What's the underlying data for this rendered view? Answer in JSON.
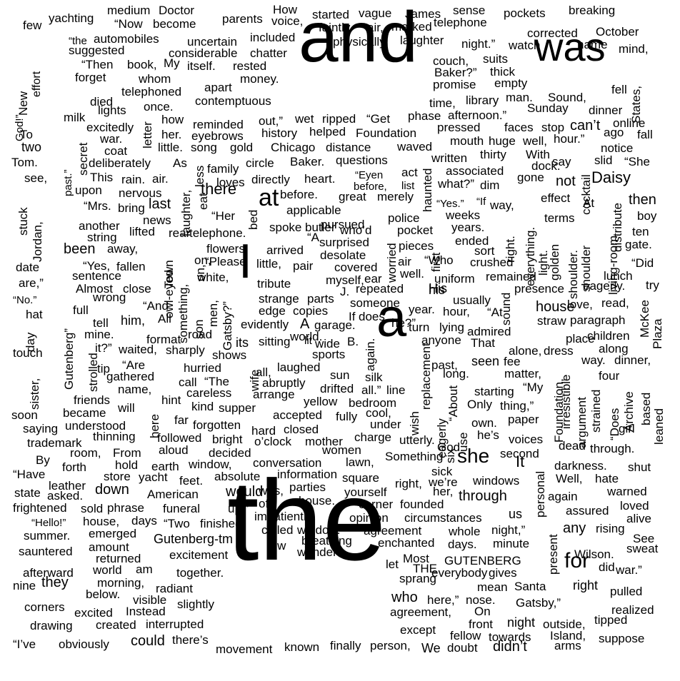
{
  "words": [
    [
      "the",
      0
    ],
    [
      "and",
      0
    ],
    [
      "was",
      0
    ],
    [
      "a",
      0
    ],
    [
      "I",
      0
    ],
    [
      "at",
      0
    ],
    [
      "she",
      0
    ],
    [
      "for",
      0
    ],
    [
      "Daisy",
      0
    ],
    [
      "there",
      0
    ],
    [
      "then",
      0
    ],
    [
      "It",
      0
    ],
    [
      "down",
      0
    ],
    [
      "they",
      0
    ],
    [
      "who",
      0
    ],
    [
      "didn’t",
      0
    ],
    [
      "could",
      0
    ],
    [
      "not",
      0
    ],
    [
      "been",
      0
    ],
    [
      "would",
      0
    ],
    [
      "through",
      0
    ],
    [
      "house",
      0
    ],
    [
      "any",
      0
    ],
    [
      "Gutenberg-tm",
      0
    ],
    [
      "his",
      0
    ],
    [
      "right",
      0
    ],
    [
      "its",
      0
    ],
    [
      "him,",
      0
    ],
    [
      "us",
      0
    ],
    [
      "few",
      0
    ],
    [
      "yachting",
      0
    ],
    [
      "medium",
      0
    ],
    [
      "Doctor",
      0
    ],
    [
      "How",
      0
    ],
    [
      "started",
      0
    ],
    [
      "vague",
      0
    ],
    [
      "James",
      0
    ],
    [
      "sense",
      0
    ],
    [
      "pockets",
      0
    ],
    [
      "breaking",
      0
    ],
    [
      "“Now",
      0
    ],
    [
      "become",
      0
    ],
    [
      "parents",
      0
    ],
    [
      "voice,",
      0
    ],
    [
      "faintly",
      0
    ],
    [
      "air,",
      0
    ],
    [
      "marked",
      0
    ],
    [
      "telephone",
      0
    ],
    [
      "corrected",
      0
    ],
    [
      "October",
      0
    ],
    [
      "“the",
      0
    ],
    [
      "automobiles",
      0
    ],
    [
      "uncertain",
      0
    ],
    [
      "included",
      0
    ],
    [
      "on,",
      0
    ],
    [
      "physically",
      0
    ],
    [
      "laughter",
      0
    ],
    [
      "night.”",
      0
    ],
    [
      "watch",
      0
    ],
    [
      "name",
      0
    ],
    [
      "mind,",
      0
    ],
    [
      "suggested",
      0
    ],
    [
      "considerable",
      0
    ],
    [
      "chatter",
      0
    ],
    [
      "“Then",
      0
    ],
    [
      "book,",
      0
    ],
    [
      "My",
      0
    ],
    [
      "itself.",
      0
    ],
    [
      "rested",
      0
    ],
    [
      "couch,",
      0
    ],
    [
      "suits",
      0
    ],
    [
      "forget",
      0
    ],
    [
      "whom",
      0
    ],
    [
      "money.",
      0
    ],
    [
      "Baker?”",
      0
    ],
    [
      "thick",
      0
    ],
    [
      "apart",
      0
    ],
    [
      "promise",
      0
    ],
    [
      "empty",
      0
    ],
    [
      "fell",
      0
    ],
    [
      "telephoned",
      0
    ],
    [
      "died",
      0
    ],
    [
      "contemptuous",
      0
    ],
    [
      "library",
      0
    ],
    [
      "man.",
      0
    ],
    [
      "Sound,",
      0
    ],
    [
      "time,",
      0
    ],
    [
      "lights",
      0
    ],
    [
      "once.",
      0
    ],
    [
      "afternoon.”",
      0
    ],
    [
      "Sunday",
      0
    ],
    [
      "dinner",
      0
    ],
    [
      "milk",
      0
    ],
    [
      "how",
      0
    ],
    [
      "out,”",
      0
    ],
    [
      "wet",
      0
    ],
    [
      "ripped",
      0
    ],
    [
      "“Get",
      0
    ],
    [
      "phase",
      0
    ],
    [
      "online",
      0
    ],
    [
      "reminded",
      0
    ],
    [
      "pressed",
      0
    ],
    [
      "faces",
      0
    ],
    [
      "stop",
      0
    ],
    [
      "can’t",
      0
    ],
    [
      "ago",
      0
    ],
    [
      "fall",
      0
    ],
    [
      "excitedly",
      0
    ],
    [
      "her.",
      0
    ],
    [
      "history",
      0
    ],
    [
      "helped",
      0
    ],
    [
      "Foundation",
      0
    ],
    [
      "war.",
      0
    ],
    [
      "eyebrows",
      0
    ],
    [
      "mouth",
      0
    ],
    [
      "huge",
      0
    ],
    [
      "well,",
      0
    ],
    [
      "hour.”",
      0
    ],
    [
      "notice",
      0
    ],
    [
      "little.",
      0
    ],
    [
      "song",
      0
    ],
    [
      "gold",
      0
    ],
    [
      "Chicago",
      0
    ],
    [
      "distance",
      0
    ],
    [
      "waved",
      0
    ],
    [
      "coat",
      0
    ],
    [
      "thirty",
      0
    ],
    [
      "With",
      0
    ],
    [
      "slid",
      0
    ],
    [
      "“She",
      0
    ],
    [
      "written",
      0
    ],
    [
      "dock.",
      0
    ],
    [
      "say",
      0
    ],
    [
      "To",
      0
    ],
    [
      "two",
      0
    ],
    [
      "deliberately",
      0
    ],
    [
      "As",
      0
    ],
    [
      "circle",
      0
    ],
    [
      "Baker.",
      0
    ],
    [
      "questions",
      0
    ],
    [
      "Tom.",
      0
    ],
    [
      "family",
      0
    ],
    [
      "associated",
      0
    ],
    [
      "gone",
      0
    ],
    [
      "This",
      0
    ],
    [
      "rain.",
      0
    ],
    [
      "air.",
      0
    ],
    [
      "directly",
      0
    ],
    [
      "heart.",
      0
    ],
    [
      "“Eyen",
      0
    ],
    [
      "act",
      0
    ],
    [
      "see,",
      0
    ],
    [
      "upon",
      0
    ],
    [
      "loves",
      0
    ],
    [
      "before,",
      0
    ],
    [
      "list",
      0
    ],
    [
      "what?”",
      0
    ],
    [
      "dim",
      0
    ],
    [
      "nervous",
      0
    ],
    [
      "before.",
      0
    ],
    [
      "great",
      0
    ],
    [
      "merely",
      0
    ],
    [
      "effect",
      0
    ],
    [
      "At",
      0
    ],
    [
      "“Mrs.",
      0
    ],
    [
      "bring",
      0
    ],
    [
      "last",
      0
    ],
    [
      "“Yes.”",
      0
    ],
    [
      "“If",
      0
    ],
    [
      "way,",
      0
    ],
    [
      "“Her",
      0
    ],
    [
      "applicable",
      0
    ],
    [
      "news",
      0
    ],
    [
      "pursued",
      0
    ],
    [
      "police",
      0
    ],
    [
      "weeks",
      0
    ],
    [
      "terms",
      0
    ],
    [
      "boy",
      0
    ],
    [
      "another",
      0
    ],
    [
      "lifted",
      0
    ],
    [
      "spoke",
      0
    ],
    [
      "butler",
      0
    ],
    [
      "who’d",
      0
    ],
    [
      "pocket",
      0
    ],
    [
      "years.",
      0
    ],
    [
      "ten",
      0
    ],
    [
      "string",
      0
    ],
    [
      "rear",
      0
    ],
    [
      "telephone.",
      0
    ],
    [
      "“A",
      0
    ],
    [
      "surprised",
      0
    ],
    [
      "ended",
      0
    ],
    [
      "gate.",
      0
    ],
    [
      "away,",
      0
    ],
    [
      "flowers.",
      0
    ],
    [
      "arrived",
      0
    ],
    [
      "pieces",
      0
    ],
    [
      "sort",
      0
    ],
    [
      "“Yes,",
      0
    ],
    [
      "fallen",
      0
    ],
    [
      "“Please",
      0
    ],
    [
      "little,",
      0
    ],
    [
      "pair",
      0
    ],
    [
      "desolate",
      0
    ],
    [
      "covered",
      0
    ],
    [
      "“Did",
      0
    ],
    [
      "sentence",
      0
    ],
    [
      "air",
      0
    ],
    [
      "“Who",
      0
    ],
    [
      "crushed",
      0
    ],
    [
      "lunch",
      0
    ],
    [
      "white,",
      0
    ],
    [
      "myself,",
      0
    ],
    [
      "ear",
      0
    ],
    [
      "well.",
      0
    ],
    [
      "remained",
      0
    ],
    [
      "Almost",
      0
    ],
    [
      "close",
      0
    ],
    [
      "tribute",
      0
    ],
    [
      "repeated",
      0
    ],
    [
      "presence",
      0
    ],
    [
      "eagerly.",
      0
    ],
    [
      "try",
      0
    ],
    [
      "wrong",
      0
    ],
    [
      "uniform",
      0
    ],
    [
      "strange",
      0
    ],
    [
      "parts",
      0
    ],
    [
      "J.",
      0
    ],
    [
      "His",
      0
    ],
    [
      "“No.”",
      0
    ],
    [
      "someone",
      0
    ],
    [
      "usually",
      0
    ],
    [
      "love,",
      0
    ],
    [
      "read,",
      0
    ],
    [
      "full",
      0
    ],
    [
      "“And",
      0
    ],
    [
      "edge",
      0
    ],
    [
      "copies",
      0
    ],
    [
      "year.",
      0
    ],
    [
      "hour,",
      0
    ],
    [
      "“At",
      0
    ],
    [
      "straw",
      0
    ],
    [
      "paragraph",
      0
    ],
    [
      "tell",
      0
    ],
    [
      "All",
      0
    ],
    [
      "evidently",
      0
    ],
    [
      "If",
      0
    ],
    [
      "does",
      0
    ],
    [
      "he?”",
      0
    ],
    [
      "mine.",
      0
    ],
    [
      "format",
      0
    ],
    [
      "road",
      0
    ],
    [
      "A",
      0
    ],
    [
      "garage.",
      0
    ],
    [
      "turn",
      0
    ],
    [
      "lying",
      0
    ],
    [
      "admired",
      0
    ],
    [
      "children",
      0
    ],
    [
      "sitting",
      0
    ],
    [
      "world.",
      0
    ],
    [
      "lit",
      0
    ],
    [
      "anyone",
      0
    ],
    [
      "That",
      0
    ],
    [
      "place",
      0
    ],
    [
      "along",
      0
    ],
    [
      "it?”",
      0
    ],
    [
      "waited,",
      0
    ],
    [
      "sharply",
      0
    ],
    [
      "shows",
      0
    ],
    [
      "wide",
      0
    ],
    [
      "B.",
      0
    ],
    [
      "sports",
      0
    ],
    [
      "alone,",
      0
    ],
    [
      "dress",
      0
    ],
    [
      "touch",
      0
    ],
    [
      "tip",
      0
    ],
    [
      "“Are",
      0
    ],
    [
      "all,",
      0
    ],
    [
      "laughed",
      0
    ],
    [
      "past,",
      0
    ],
    [
      "seen",
      0
    ],
    [
      "fee",
      0
    ],
    [
      "way.",
      0
    ],
    [
      "dinner,",
      0
    ],
    [
      "gathered",
      0
    ],
    [
      "hurried",
      0
    ],
    [
      "sun",
      0
    ],
    [
      "silk",
      0
    ],
    [
      "long.",
      0
    ],
    [
      "matter,",
      0
    ],
    [
      "four",
      0
    ],
    [
      "call",
      0
    ],
    [
      "“The",
      0
    ],
    [
      "abruptly",
      0
    ],
    [
      "drifted",
      0
    ],
    [
      "all.”",
      0
    ],
    [
      "line",
      0
    ],
    [
      "name,",
      0
    ],
    [
      "careless",
      0
    ],
    [
      "arrange",
      0
    ],
    [
      "starting",
      0
    ],
    [
      "“My",
      0
    ],
    [
      "friends",
      0
    ],
    [
      "hint",
      0
    ],
    [
      "kind",
      0
    ],
    [
      "supper",
      0
    ],
    [
      "yellow",
      0
    ],
    [
      "bedroom",
      0
    ],
    [
      "Only",
      0
    ],
    [
      "thing,”",
      0
    ],
    [
      "will",
      0
    ],
    [
      "soon",
      0
    ],
    [
      "became",
      0
    ],
    [
      "far",
      0
    ],
    [
      "accepted",
      0
    ],
    [
      "fully",
      0
    ],
    [
      "cool,",
      0
    ],
    [
      "paper",
      0
    ],
    [
      "girl",
      0
    ],
    [
      "saying",
      0
    ],
    [
      "understood",
      0
    ],
    [
      "forgotten",
      0
    ],
    [
      "hard",
      0
    ],
    [
      "closed",
      0
    ],
    [
      "under",
      0
    ],
    [
      "own.",
      0
    ],
    [
      "thinning",
      0
    ],
    [
      "followed",
      0
    ],
    [
      "bright",
      0
    ],
    [
      "o’clock",
      0
    ],
    [
      "charge",
      0
    ],
    [
      "utterly.",
      0
    ],
    [
      "he’s",
      0
    ],
    [
      "voices",
      0
    ],
    [
      "trademark",
      0
    ],
    [
      "aloud",
      0
    ],
    [
      "decided",
      0
    ],
    [
      "mother",
      0
    ],
    [
      "God",
      0
    ],
    [
      "dead",
      0
    ],
    [
      "through.",
      0
    ],
    [
      "room,",
      0
    ],
    [
      "From",
      0
    ],
    [
      "women",
      0
    ],
    [
      "Something",
      0
    ],
    [
      "second",
      0
    ],
    [
      "By",
      0
    ],
    [
      "forth",
      0
    ],
    [
      "hold",
      0
    ],
    [
      "earth",
      0
    ],
    [
      "window,",
      0
    ],
    [
      "conversation",
      0
    ],
    [
      "lawn,",
      0
    ],
    [
      "sick",
      0
    ],
    [
      "darkness.",
      0
    ],
    [
      "shut",
      0
    ],
    [
      "“Have",
      0
    ],
    [
      "store",
      0
    ],
    [
      "yacht",
      0
    ],
    [
      "feet.",
      0
    ],
    [
      "absolute",
      0
    ],
    [
      "information",
      0
    ],
    [
      "square",
      0
    ],
    [
      "right,",
      0
    ],
    [
      "we’re",
      0
    ],
    [
      "windows",
      0
    ],
    [
      "Well,",
      0
    ],
    [
      "hate",
      0
    ],
    [
      "leather",
      0
    ],
    [
      "parties",
      0
    ],
    [
      "her,",
      0
    ],
    [
      "warned",
      0
    ],
    [
      "state",
      0
    ],
    [
      "asked.",
      0
    ],
    [
      "American",
      0
    ],
    [
      "was,",
      0
    ],
    [
      "yourself",
      0
    ],
    [
      "again",
      0
    ],
    [
      "frightened",
      0
    ],
    [
      "phrase",
      0
    ],
    [
      "funeral",
      0
    ],
    [
      "off",
      0
    ],
    [
      "house.",
      0
    ],
    [
      "corner",
      0
    ],
    [
      "founded",
      0
    ],
    [
      "assured",
      0
    ],
    [
      "loved",
      0
    ],
    [
      "sold",
      0
    ],
    [
      "up,”",
      0
    ],
    [
      "opinion",
      0
    ],
    [
      "“Hello!”",
      0
    ],
    [
      "house,",
      0
    ],
    [
      "days",
      0
    ],
    [
      "“Two",
      0
    ],
    [
      "finished",
      0
    ],
    [
      "impatiently.",
      0
    ],
    [
      "circumstances",
      0
    ],
    [
      "alive",
      0
    ],
    [
      "summer.",
      0
    ],
    [
      "emerged",
      0
    ],
    [
      "called",
      0
    ],
    [
      "window.",
      0
    ],
    [
      "agreement",
      0
    ],
    [
      "whole",
      0
    ],
    [
      "night,”",
      0
    ],
    [
      "rising",
      0
    ],
    [
      "amount",
      0
    ],
    [
      "row",
      0
    ],
    [
      "breathing",
      0
    ],
    [
      "enchanted",
      0
    ],
    [
      "days.",
      0
    ],
    [
      "minute",
      0
    ],
    [
      "See",
      0
    ],
    [
      "sauntered",
      0
    ],
    [
      "returned",
      0
    ],
    [
      "excitement",
      0
    ],
    [
      "wonder",
      0
    ],
    [
      "Wilson.",
      0
    ],
    [
      "sweat",
      0
    ],
    [
      "world",
      0
    ],
    [
      "am",
      0
    ],
    [
      "let",
      0
    ],
    [
      "Most",
      0
    ],
    [
      "THE",
      0
    ],
    [
      "GUTENBERG",
      0
    ],
    [
      "did",
      0
    ],
    [
      "war.”",
      0
    ],
    [
      "afterward",
      0
    ],
    [
      "together.",
      0
    ],
    [
      "sprang",
      0
    ],
    [
      "everybody",
      0
    ],
    [
      "gives",
      0
    ],
    [
      "nine",
      0
    ],
    [
      "morning,",
      0
    ],
    [
      "radiant",
      0
    ],
    [
      "pulled",
      0
    ],
    [
      "below.",
      0
    ],
    [
      "mean",
      0
    ],
    [
      "Santa",
      0
    ],
    [
      "visible",
      0
    ],
    [
      "slightly",
      0
    ],
    [
      "here,”",
      0
    ],
    [
      "nose.",
      0
    ],
    [
      "corners",
      0
    ],
    [
      "excited",
      0
    ],
    [
      "Instead",
      0
    ],
    [
      "agreement,",
      0
    ],
    [
      "On",
      0
    ],
    [
      "realized",
      0
    ],
    [
      "Gatsby,”",
      0
    ],
    [
      "front",
      0
    ],
    [
      "night",
      0
    ],
    [
      "outside,",
      0
    ],
    [
      "tipped",
      0
    ],
    [
      "drawing",
      0
    ],
    [
      "created",
      0
    ],
    [
      "interrupted",
      0
    ],
    [
      "except",
      0
    ],
    [
      "Island,",
      0
    ],
    [
      "fellow",
      0
    ],
    [
      "towards",
      0
    ],
    [
      "there’s",
      0
    ],
    [
      "“I’ve",
      0
    ],
    [
      "obviously",
      0
    ],
    [
      "movement",
      0
    ],
    [
      "known",
      0
    ],
    [
      "finally",
      0
    ],
    [
      "person,",
      0
    ],
    [
      "We",
      0
    ],
    [
      "doubt",
      0
    ],
    [
      "arms",
      0
    ],
    [
      "suppose",
      0
    ],
    [
      "effort",
      90
    ],
    [
      "New",
      90
    ],
    [
      "God!”",
      90
    ],
    [
      "past.”",
      90
    ],
    [
      "stuck",
      90
    ],
    [
      "Jordan,",
      90
    ],
    [
      "date",
      0
    ],
    [
      "are,”",
      0
    ],
    [
      "hat",
      0
    ],
    [
      "day",
      90
    ],
    [
      "sister,",
      90
    ],
    [
      "Gutenberg”",
      90
    ],
    [
      "strolled",
      90
    ],
    [
      "letter",
      90
    ],
    [
      "secret",
      90
    ],
    [
      "Town",
      90
    ],
    [
      "owl-eyed",
      90
    ],
    [
      "laughter,",
      90
    ],
    [
      "less",
      90
    ],
    [
      "eat",
      90
    ],
    [
      "on,",
      90
    ],
    [
      "son",
      90
    ],
    [
      "men,",
      90
    ],
    [
      "Gatsby?”",
      90
    ],
    [
      "something,",
      90
    ],
    [
      "wife",
      90
    ],
    [
      "here",
      90
    ],
    [
      "bed",
      90
    ],
    [
      "worried",
      90
    ],
    [
      "first",
      90
    ],
    [
      "again.",
      90
    ],
    [
      "haunted",
      90
    ],
    [
      "right.",
      90
    ],
    [
      "sound",
      90
    ],
    [
      "“About",
      90
    ],
    [
      "wish",
      90
    ],
    [
      "replacement",
      90
    ],
    [
      "six",
      90
    ],
    [
      "eagerly",
      90
    ],
    [
      "use",
      90
    ],
    [
      "personal",
      90
    ],
    [
      "present",
      90
    ],
    [
      "golden",
      90
    ],
    [
      "light.",
      90
    ],
    [
      "everything.",
      90
    ],
    [
      "cocktail",
      90
    ],
    [
      "shoulder",
      90
    ],
    [
      "shoulder.",
      90
    ],
    [
      "distribute",
      90
    ],
    [
      "living-room",
      90
    ],
    [
      "States,",
      90
    ],
    [
      "McKee",
      90
    ],
    [
      "Plaza",
      90
    ],
    [
      "Foundation,",
      90
    ],
    [
      "irresistible",
      90
    ],
    [
      "argument",
      90
    ],
    [
      "strained",
      90
    ],
    [
      "“Does",
      90
    ],
    [
      "Archive",
      90
    ],
    [
      "based",
      90
    ],
    [
      "leaned",
      90
    ]
  ]
}
